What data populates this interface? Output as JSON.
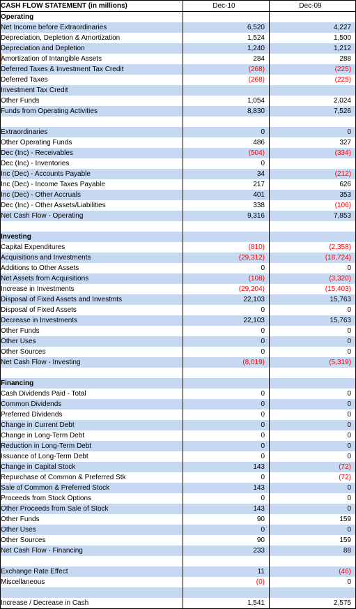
{
  "header": {
    "title": "CASH FLOW STATEMENT (in millions)",
    "col1": "Dec-10",
    "col2": "Dec-09"
  },
  "rows": [
    {
      "label": "Operating",
      "section": true
    },
    {
      "label": "Net Income before Extraordinaries",
      "indent": 2,
      "v1": "6,520",
      "v2": "4,227"
    },
    {
      "label": "Depreciation, Depletion & Amortization",
      "indent": 2,
      "v1": "1,524",
      "v2": "1,500"
    },
    {
      "label": "Depreciation and Depletion",
      "indent": 3,
      "v1": "1,240",
      "v2": "1,212"
    },
    {
      "label": "Amortization of Intangible Assets",
      "indent": 3,
      "v1": "284",
      "v2": "288",
      "marked": true
    },
    {
      "label": "Deferred Taxes & Investment Tax Credit",
      "indent": 2,
      "v1": "(268)",
      "v2": "(225)"
    },
    {
      "label": "Deferred Taxes",
      "indent": 3,
      "v1": "(268)",
      "v2": "(225)"
    },
    {
      "label": "Investment Tax Credit",
      "indent": 3
    },
    {
      "label": "Other Funds",
      "indent": 2,
      "v1": "1,054",
      "v2": "2,024"
    },
    {
      "label": "Funds from Operating Activities",
      "indent": 1,
      "v1": "8,830",
      "v2": "7,526"
    },
    {
      "label": ""
    },
    {
      "label": "Extraordinaries",
      "indent": 1,
      "v1": "0",
      "v2": "0"
    },
    {
      "label": "Other Operating Funds",
      "indent": 1,
      "v1": "486",
      "v2": "327"
    },
    {
      "label": "Dec (Inc) - Receivables",
      "indent": 2,
      "v1": "(504)",
      "v2": "(334)"
    },
    {
      "label": "Dec (Inc) - Inventories",
      "indent": 2,
      "v1": "0",
      "v2": ""
    },
    {
      "label": "Inc (Dec) - Accounts Payable",
      "indent": 2,
      "v1": "34",
      "v2": "(212)"
    },
    {
      "label": "Inc (Dec) - Income Taxes Payable",
      "indent": 2,
      "v1": "217",
      "v2": "626"
    },
    {
      "label": "Inc (Dec) - Other Accruals",
      "indent": 2,
      "v1": "401",
      "v2": "353"
    },
    {
      "label": "Dec (Inc) - Other Assets/Liabilities",
      "indent": 2,
      "v1": "338",
      "v2": "(106)"
    },
    {
      "label": "Net Cash Flow - Operating",
      "indent": 0,
      "v1": "9,316",
      "v2": "7,853"
    },
    {
      "label": ""
    },
    {
      "label": "Investing",
      "section": true
    },
    {
      "label": "Capital Expenditures",
      "indent": 1,
      "v1": "(810)",
      "v2": "(2,358)"
    },
    {
      "label": "Acquisitions and Investments",
      "indent": 1,
      "v1": "(29,312)",
      "v2": "(18,724)"
    },
    {
      "label": "Additions to Other Assets",
      "indent": 2,
      "v1": "0",
      "v2": "0"
    },
    {
      "label": "Net Assets from Acquisitions",
      "indent": 2,
      "v1": "(108)",
      "v2": "(3,320)"
    },
    {
      "label": "Increase in Investments",
      "indent": 2,
      "v1": "(29,204)",
      "v2": "(15,403)"
    },
    {
      "label": "Disposal of Fixed Assets and Investmts",
      "indent": 1,
      "v1": "22,103",
      "v2": "15,763"
    },
    {
      "label": "Disposal of Fixed Assets",
      "indent": 2,
      "v1": "0",
      "v2": "0"
    },
    {
      "label": "Decrease in Investments",
      "indent": 2,
      "v1": "22,103",
      "v2": "15,763"
    },
    {
      "label": "Other Funds",
      "indent": 1,
      "v1": "0",
      "v2": "0"
    },
    {
      "label": "Other Uses",
      "indent": 2,
      "v1": "0",
      "v2": "0"
    },
    {
      "label": "Other Sources",
      "indent": 2,
      "v1": "0",
      "v2": "0"
    },
    {
      "label": "Net Cash Flow - Investing",
      "indent": 0,
      "v1": "(8,019)",
      "v2": "(5,319)"
    },
    {
      "label": ""
    },
    {
      "label": "Financing",
      "section": true
    },
    {
      "label": "Cash Dividends Paid - Total",
      "indent": 1,
      "v1": "0",
      "v2": "0"
    },
    {
      "label": "Common Dividends",
      "indent": 2,
      "v1": "0",
      "v2": "0"
    },
    {
      "label": "Preferred Dividends",
      "indent": 2,
      "v1": "0",
      "v2": "0"
    },
    {
      "label": "Change in Current Debt",
      "indent": 1,
      "v1": "0",
      "v2": "0"
    },
    {
      "label": "Change in Long-Term Debt",
      "indent": 1,
      "v1": "0",
      "v2": "0"
    },
    {
      "label": "Reduction in Long-Term Debt",
      "indent": 2,
      "v1": "0",
      "v2": "0"
    },
    {
      "label": "Issuance of Long-Term Debt",
      "indent": 2,
      "v1": "0",
      "v2": "0"
    },
    {
      "label": "Change in Capital Stock",
      "indent": 1,
      "v1": "143",
      "v2": "(72)"
    },
    {
      "label": "Repurchase of Common & Preferred Stk",
      "indent": 2,
      "v1": "0",
      "v2": "(72)"
    },
    {
      "label": "Sale of Common & Preferred Stock",
      "indent": 2,
      "v1": "143",
      "v2": "0"
    },
    {
      "label": "Proceeds from Stock Options",
      "indent": 3,
      "v1": "0",
      "v2": "0"
    },
    {
      "label": "Other Proceeds from Sale of Stock",
      "indent": 3,
      "v1": "143",
      "v2": "0"
    },
    {
      "label": "Other Funds",
      "indent": 1,
      "v1": "90",
      "v2": "159"
    },
    {
      "label": "Other Uses",
      "indent": 2,
      "v1": "0",
      "v2": "0"
    },
    {
      "label": "Other Sources",
      "indent": 2,
      "v1": "90",
      "v2": "159"
    },
    {
      "label": "Net Cash Flow - Financing",
      "indent": 0,
      "v1": "233",
      "v2": "88"
    },
    {
      "label": ""
    },
    {
      "label": "Exchange Rate Effect",
      "indent": 0,
      "v1": "11",
      "v2": "(46)"
    },
    {
      "label": "Miscellaneous",
      "indent": 0,
      "v1": "(0)",
      "v2": "0"
    },
    {
      "label": ""
    },
    {
      "label": "Increase / Decrease in Cash",
      "indent": 0,
      "v1": "1,541",
      "v2": "2,575"
    }
  ]
}
